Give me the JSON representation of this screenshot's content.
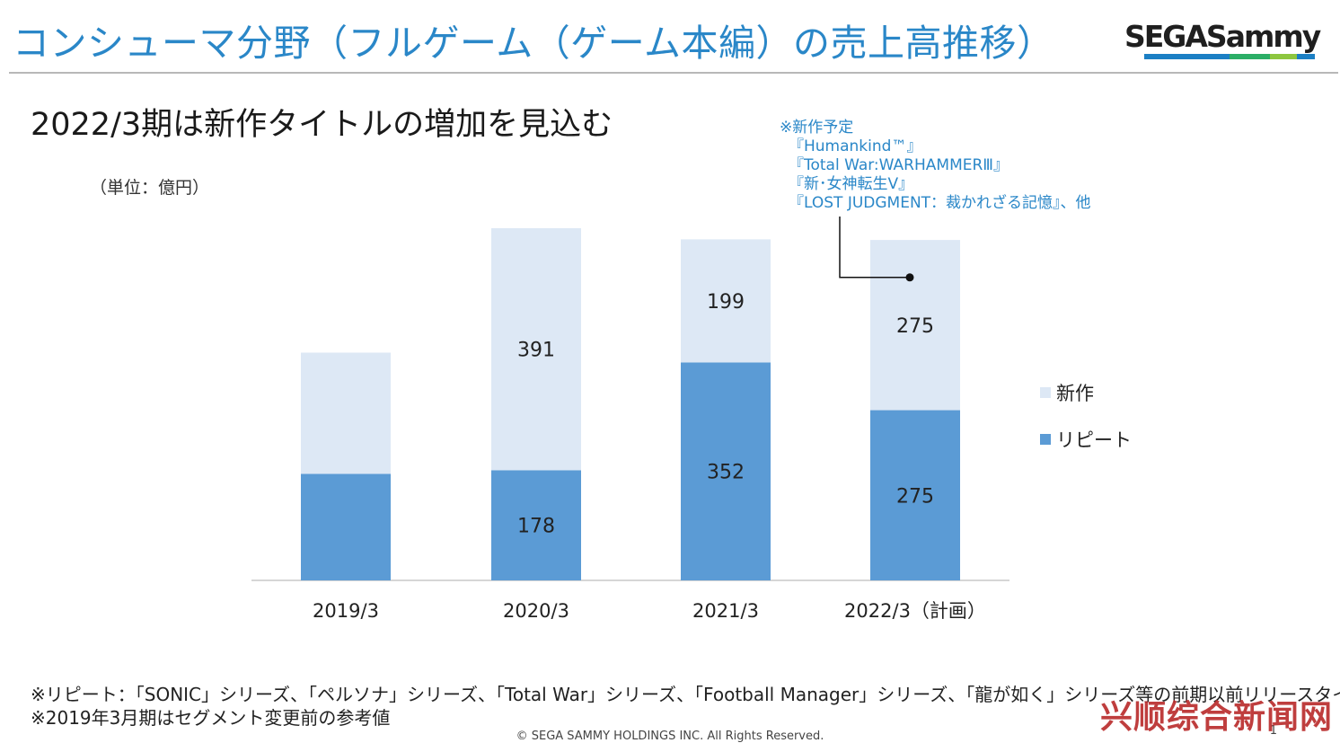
{
  "header": {
    "title": "コンシューマ分野（フルゲーム（ゲーム本編）の売上高推移）",
    "logo_text": "SEGASammy",
    "logo_colors": [
      "#1b7fc4",
      "#2bae66",
      "#8dc63f",
      "#1b7fc4"
    ]
  },
  "subtitle": "2022/3期は新作タイトルの増加を見込む",
  "unit_label": "（単位：億円）",
  "note": {
    "lines": [
      "※新作予定",
      "『Humankind™』",
      "『Total War:WARHAMMERⅢ』",
      "『新･女神転生Ⅴ』",
      "『LOST JUDGMENT：裁かれざる記憶』、他"
    ]
  },
  "chart_data": {
    "type": "bar",
    "stacked": true,
    "categories": [
      "2019/3",
      "2020/3",
      "2021/3",
      "2022/3（計画）"
    ],
    "series": [
      {
        "name": "リピート",
        "values": [
          172,
          178,
          352,
          275
        ],
        "labels": [
          "",
          "178",
          "352",
          "275"
        ],
        "color": "#5b9bd5"
      },
      {
        "name": "新作",
        "values": [
          196,
          391,
          199,
          275
        ],
        "labels": [
          "",
          "391",
          "199",
          "275"
        ],
        "color": "#dde8f5"
      }
    ],
    "ylim": [
      0,
      600
    ],
    "grid": false,
    "legend_position": "right",
    "legend_order": [
      "新作",
      "リピート"
    ]
  },
  "footnotes": [
    "※リピート：「SONIC」シリーズ、「ペルソナ」シリーズ、「Total War」シリーズ、「Football Manager」シリーズ、「龍が如く」シリーズ等の前期以前リリースタイトル",
    "※2019年3月期はセグメント変更前の参考値"
  ],
  "copyright": "© SEGA SAMMY HOLDINGS INC. All Rights Reserved.",
  "page_number": "1",
  "watermark": "兴顺综合新闻网"
}
